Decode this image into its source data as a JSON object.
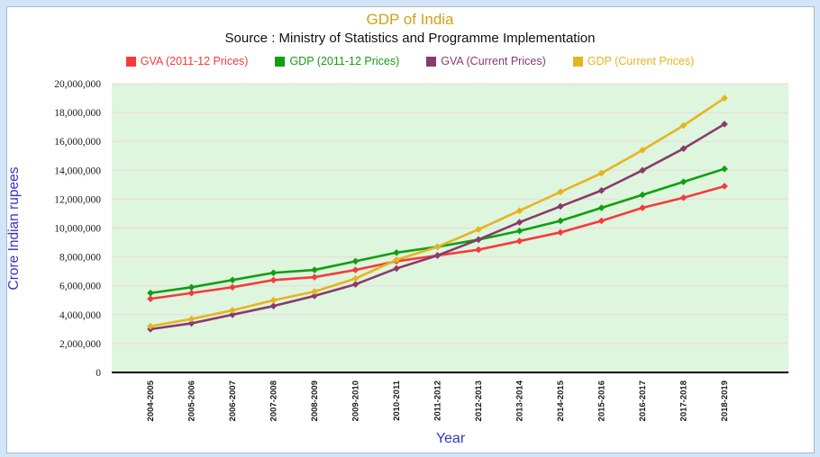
{
  "header": {
    "title": "GDP of India",
    "subtitle": "Source : Ministry of Statistics and Programme Implementation"
  },
  "colors": {
    "title": "#d4a017",
    "axis_titles": "#3333cc",
    "page_background": "#d2e4f8",
    "card_background": "#ffffff",
    "plot_background": "#def5de",
    "gridline": "#e9dada",
    "x_axis_line": "#000000"
  },
  "chart_data": {
    "type": "line",
    "title": "GDP of India",
    "subtitle": "Source : Ministry of Statistics and Programme Implementation",
    "xlabel": "Year",
    "ylabel": "Crore Indian rupees",
    "ylim": [
      0,
      20000000
    ],
    "ytick_step": 2000000,
    "yticks": [
      "0",
      "2,000,000",
      "4,000,000",
      "6,000,000",
      "8,000,000",
      "10,000,000",
      "12,000,000",
      "14,000,000",
      "16,000,000",
      "18,000,000",
      "20,000,000"
    ],
    "grid": true,
    "legend_position": "top",
    "plot_bg": "#def5de",
    "grid_color": "#e9dada",
    "categories": [
      "2004-2005",
      "2005-2006",
      "2006-2007",
      "2007-2008",
      "2008-2009",
      "2009-2010",
      "2010-2011",
      "2011-2012",
      "2012-2013",
      "2013-2014",
      "2014-2015",
      "2015-2016",
      "2016-2017",
      "2017-2018",
      "2018-2019"
    ],
    "series": [
      {
        "name": "GVA (2011-12 Prices)",
        "color": "#f53b3b",
        "values": [
          5100000,
          5500000,
          5900000,
          6400000,
          6600000,
          7100000,
          7700000,
          8100000,
          8500000,
          9100000,
          9700000,
          10500000,
          11400000,
          12100000,
          12900000
        ]
      },
      {
        "name": "GDP (2011-12 Prices)",
        "color": "#0f9f0f",
        "values": [
          5500000,
          5900000,
          6400000,
          6900000,
          7100000,
          7700000,
          8300000,
          8700000,
          9200000,
          9800000,
          10500000,
          11400000,
          12300000,
          13200000,
          14100000
        ]
      },
      {
        "name": "GVA (Current Prices)",
        "color": "#8a3a6d",
        "values": [
          3000000,
          3400000,
          4000000,
          4600000,
          5300000,
          6100000,
          7200000,
          8100000,
          9200000,
          10400000,
          11500000,
          12600000,
          14000000,
          15500000,
          17200000
        ]
      },
      {
        "name": "GDP (Current Prices)",
        "color": "#e7b41f",
        "values": [
          3200000,
          3700000,
          4300000,
          5000000,
          5600000,
          6500000,
          7800000,
          8700000,
          9900000,
          11200000,
          12500000,
          13800000,
          15400000,
          17100000,
          19000000
        ]
      }
    ]
  }
}
